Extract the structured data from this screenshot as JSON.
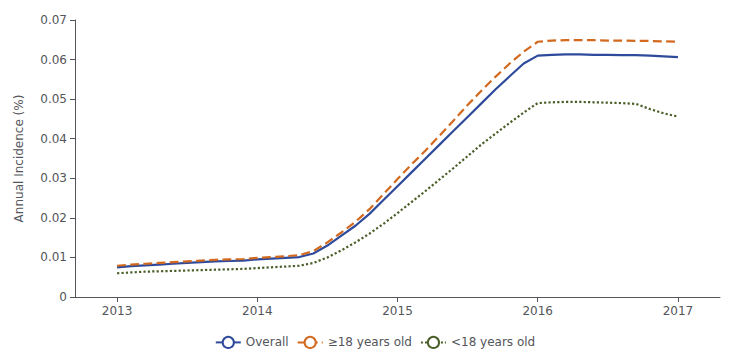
{
  "chart_data": {
    "type": "line",
    "y_label": "Annual Incidence (%)",
    "xlim": [
      2012.7,
      2017.3
    ],
    "xticks": [
      2013,
      2014,
      2015,
      2016,
      2017
    ],
    "ylim": [
      0,
      0.07
    ],
    "yticks": [
      0,
      0.01,
      0.02,
      0.03,
      0.04,
      0.05,
      0.06,
      0.07
    ],
    "grid": false,
    "legend": "bottom",
    "x": [
      2013.0,
      2013.1,
      2013.2,
      2013.3,
      2013.4,
      2013.5,
      2013.6,
      2013.7,
      2013.8,
      2013.9,
      2014.0,
      2014.1,
      2014.2,
      2014.3,
      2014.4,
      2014.5,
      2014.6,
      2014.7,
      2014.8,
      2014.9,
      2015.0,
      2015.1,
      2015.2,
      2015.3,
      2015.4,
      2015.5,
      2015.6,
      2015.7,
      2015.8,
      2015.9,
      2016.0,
      2016.1,
      2016.2,
      2016.3,
      2016.4,
      2016.5,
      2016.6,
      2016.7,
      2016.8,
      2016.9,
      2017.0
    ],
    "series": [
      {
        "name": "Overall",
        "color": "#2E4A9B",
        "line_style": "solid",
        "values": [
          0.0075,
          0.0078,
          0.008,
          0.0082,
          0.0084,
          0.0086,
          0.0088,
          0.009,
          0.0091,
          0.0092,
          0.0095,
          0.0097,
          0.0099,
          0.0101,
          0.011,
          0.013,
          0.0155,
          0.018,
          0.021,
          0.0245,
          0.028,
          0.0315,
          0.035,
          0.0385,
          0.042,
          0.0455,
          0.049,
          0.0525,
          0.0558,
          0.059,
          0.061,
          0.0612,
          0.0613,
          0.0613,
          0.0612,
          0.0612,
          0.0611,
          0.0611,
          0.061,
          0.0608,
          0.0606
        ]
      },
      {
        "name": "≥18 years old",
        "color": "#D2691E",
        "line_style": "dashed",
        "values": [
          0.0079,
          0.0082,
          0.0084,
          0.0086,
          0.0088,
          0.009,
          0.0092,
          0.0094,
          0.0095,
          0.0096,
          0.0099,
          0.0101,
          0.0103,
          0.0106,
          0.0116,
          0.0138,
          0.0163,
          0.019,
          0.0222,
          0.026,
          0.0298,
          0.0335,
          0.037,
          0.0408,
          0.0446,
          0.0485,
          0.0522,
          0.0557,
          0.059,
          0.062,
          0.0645,
          0.0648,
          0.0649,
          0.0649,
          0.0649,
          0.0648,
          0.0648,
          0.0647,
          0.0647,
          0.0646,
          0.0645
        ]
      },
      {
        "name": "<18 years old",
        "color": "#4A5E28",
        "line_style": "dotted",
        "values": [
          0.006,
          0.0062,
          0.0064,
          0.0065,
          0.0066,
          0.0067,
          0.0068,
          0.0069,
          0.007,
          0.0071,
          0.0073,
          0.0075,
          0.0077,
          0.0079,
          0.0086,
          0.01,
          0.0118,
          0.0138,
          0.016,
          0.0185,
          0.0212,
          0.024,
          0.0268,
          0.0297,
          0.0326,
          0.0356,
          0.0386,
          0.0413,
          0.044,
          0.0466,
          0.049,
          0.0492,
          0.0493,
          0.0493,
          0.0492,
          0.0491,
          0.049,
          0.0488,
          0.0475,
          0.0464,
          0.0456
        ]
      }
    ]
  }
}
